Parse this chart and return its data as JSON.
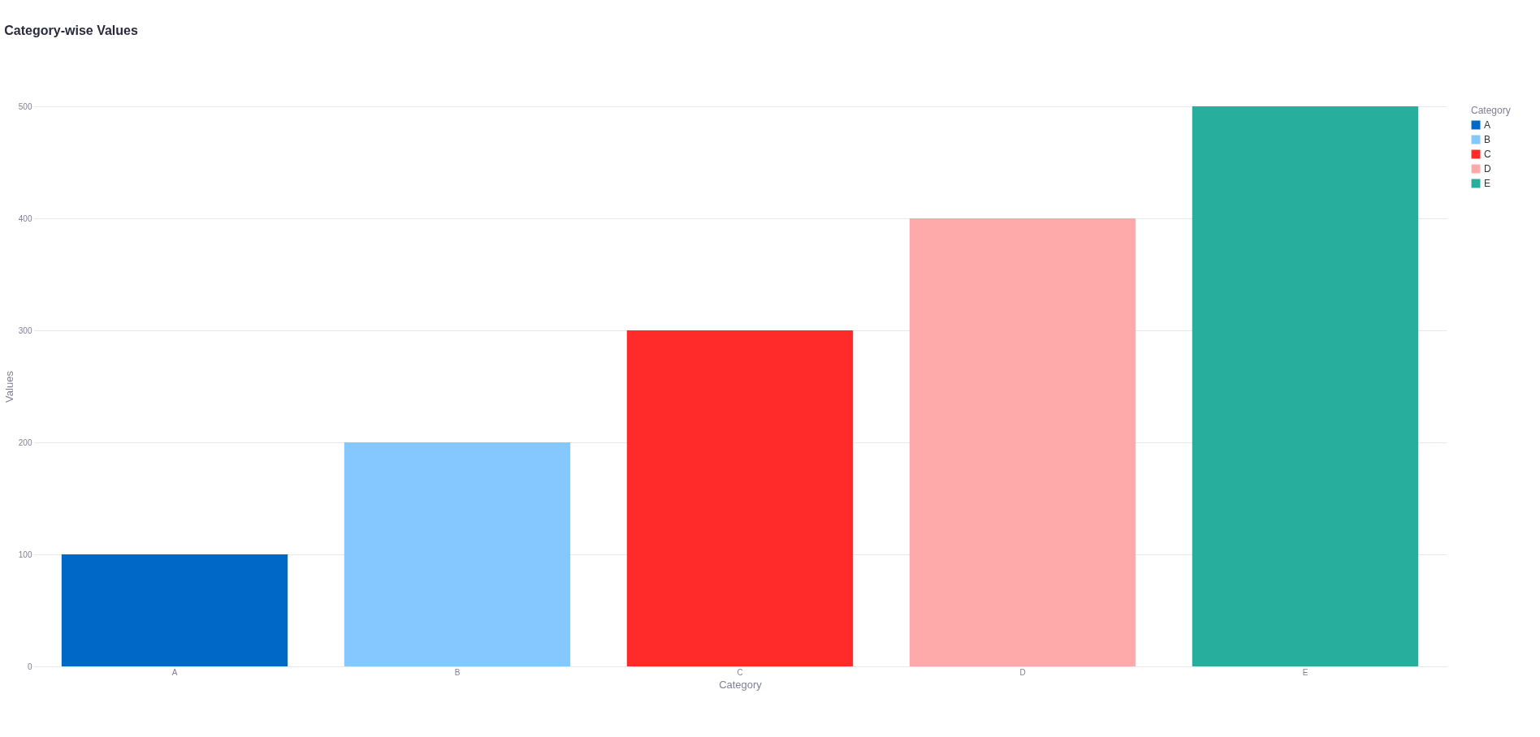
{
  "chart_data": {
    "type": "bar",
    "title": "Category-wise Values",
    "xlabel": "Category",
    "ylabel": "Values",
    "legend_title": "Category",
    "categories": [
      "A",
      "B",
      "C",
      "D",
      "E"
    ],
    "series": [
      {
        "name": "A",
        "color": "#0069c8",
        "values": [
          100,
          null,
          null,
          null,
          null
        ]
      },
      {
        "name": "B",
        "color": "#85c8ff",
        "values": [
          null,
          200,
          null,
          null,
          null
        ]
      },
      {
        "name": "C",
        "color": "#ff2a2a",
        "values": [
          null,
          null,
          300,
          null,
          null
        ]
      },
      {
        "name": "D",
        "color": "#ffaaaa",
        "values": [
          null,
          null,
          null,
          400,
          null
        ]
      },
      {
        "name": "E",
        "color": "#27ae9d",
        "values": [
          null,
          null,
          null,
          null,
          500
        ]
      }
    ],
    "ylim": [
      0,
      500
    ],
    "yticks": [
      0,
      100,
      200,
      300,
      400,
      500
    ],
    "grid": "y",
    "legend": "top right"
  }
}
